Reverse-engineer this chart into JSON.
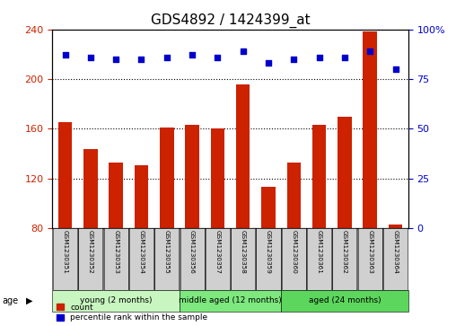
{
  "title": "GDS4892 / 1424399_at",
  "samples": [
    "GSM1230351",
    "GSM1230352",
    "GSM1230353",
    "GSM1230354",
    "GSM1230355",
    "GSM1230356",
    "GSM1230357",
    "GSM1230358",
    "GSM1230359",
    "GSM1230360",
    "GSM1230361",
    "GSM1230362",
    "GSM1230363",
    "GSM1230364"
  ],
  "counts": [
    165,
    144,
    133,
    131,
    161,
    163,
    160,
    196,
    113,
    133,
    163,
    170,
    238,
    83
  ],
  "percentiles": [
    87,
    86,
    85,
    85,
    86,
    87,
    86,
    89,
    83,
    85,
    86,
    86,
    89,
    80
  ],
  "ylim_left": [
    80,
    240
  ],
  "ylim_right": [
    0,
    100
  ],
  "yticks_left": [
    80,
    120,
    160,
    200,
    240
  ],
  "yticks_right": [
    0,
    25,
    50,
    75,
    100
  ],
  "groups": [
    {
      "label": "young (2 months)",
      "start": 0,
      "end": 5,
      "color": "#c8f5c0"
    },
    {
      "label": "middle aged (12 months)",
      "start": 5,
      "end": 9,
      "color": "#7de87d"
    },
    {
      "label": "aged (24 months)",
      "start": 9,
      "end": 14,
      "color": "#5cd65c"
    }
  ],
  "bar_color": "#cc2200",
  "dot_color": "#0000cc",
  "grid_color": "#000000",
  "bg_color": "#ffffff",
  "sample_box_color": "#d0d0d0",
  "title_fontsize": 11,
  "axis_fontsize": 8,
  "tick_fontsize": 7,
  "sample_fontsize": 5.2,
  "group_fontsize": 6.5
}
